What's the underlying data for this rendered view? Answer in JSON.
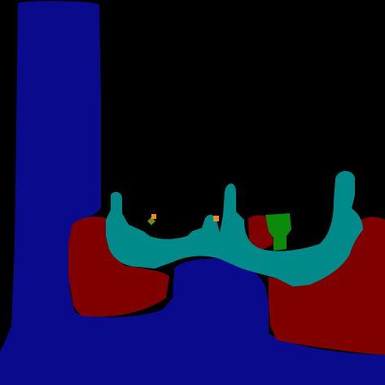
{
  "image": {
    "kind": "semantic segmentation mask",
    "background_color": "#000000"
  },
  "segments": [
    {
      "id": "segment-navy",
      "color": "#0a0a8c"
    },
    {
      "id": "segment-maroon",
      "color": "#800000"
    },
    {
      "id": "segment-teal",
      "color": "#008a8a"
    },
    {
      "id": "segment-green",
      "color": "#0b8a0b"
    },
    {
      "id": "segment-orange",
      "color": "#f08a28"
    },
    {
      "id": "segment-olive",
      "color": "#6e8a14"
    }
  ]
}
